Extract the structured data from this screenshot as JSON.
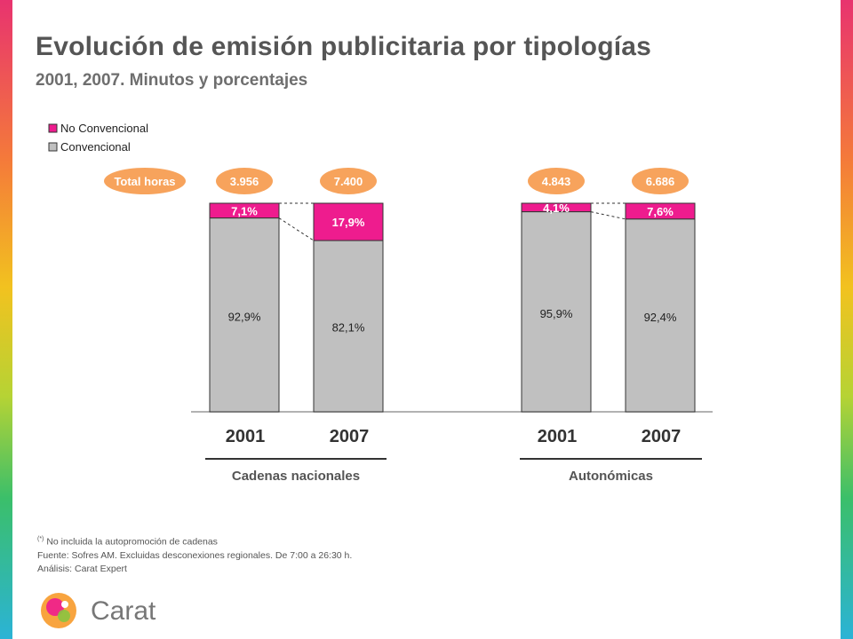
{
  "title": "Evolución de emisión publicitaria por tipologías",
  "subtitle": "2001, 2007.  Minutos y porcentajes",
  "chart_data": {
    "type": "bar",
    "stacked": true,
    "percent_stacked": true,
    "legend": [
      "No Convencional",
      "Convencional"
    ],
    "colors": {
      "no_convencional": "#ee1c8e",
      "convencional": "#c0c0c0",
      "pill": "#f7a35c",
      "border": "#333333"
    },
    "total_label": "Total horas",
    "groups": [
      {
        "name": "Cadenas nacionales",
        "bars": [
          {
            "year": "2001",
            "total": "3.956",
            "no_convencional": 7.1,
            "convencional": 92.9,
            "no_conv_label": "7,1%",
            "conv_label": "92,9%"
          },
          {
            "year": "2007",
            "total": "7.400",
            "no_convencional": 17.9,
            "convencional": 82.1,
            "no_conv_label": "17,9%",
            "conv_label": "82,1%"
          }
        ]
      },
      {
        "name": "Autonómicas",
        "bars": [
          {
            "year": "2001",
            "total": "4.843",
            "no_convencional": 4.1,
            "convencional": 95.9,
            "no_conv_label": "4,1%",
            "conv_label": "95,9%"
          },
          {
            "year": "2007",
            "total": "6.686",
            "no_convencional": 7.6,
            "convencional": 92.4,
            "no_conv_label": "7,6%",
            "conv_label": "92,4%"
          }
        ]
      }
    ]
  },
  "notes": {
    "sup": "(*)",
    "line1": "No incluida la autopromoción de cadenas",
    "line2": "Fuente: Sofres AM. Excluidas desconexiones regionales. De 7:00 a 26:30 h.",
    "line3": "Análisis: Carat Expert"
  },
  "brand": {
    "name": "Carat"
  }
}
